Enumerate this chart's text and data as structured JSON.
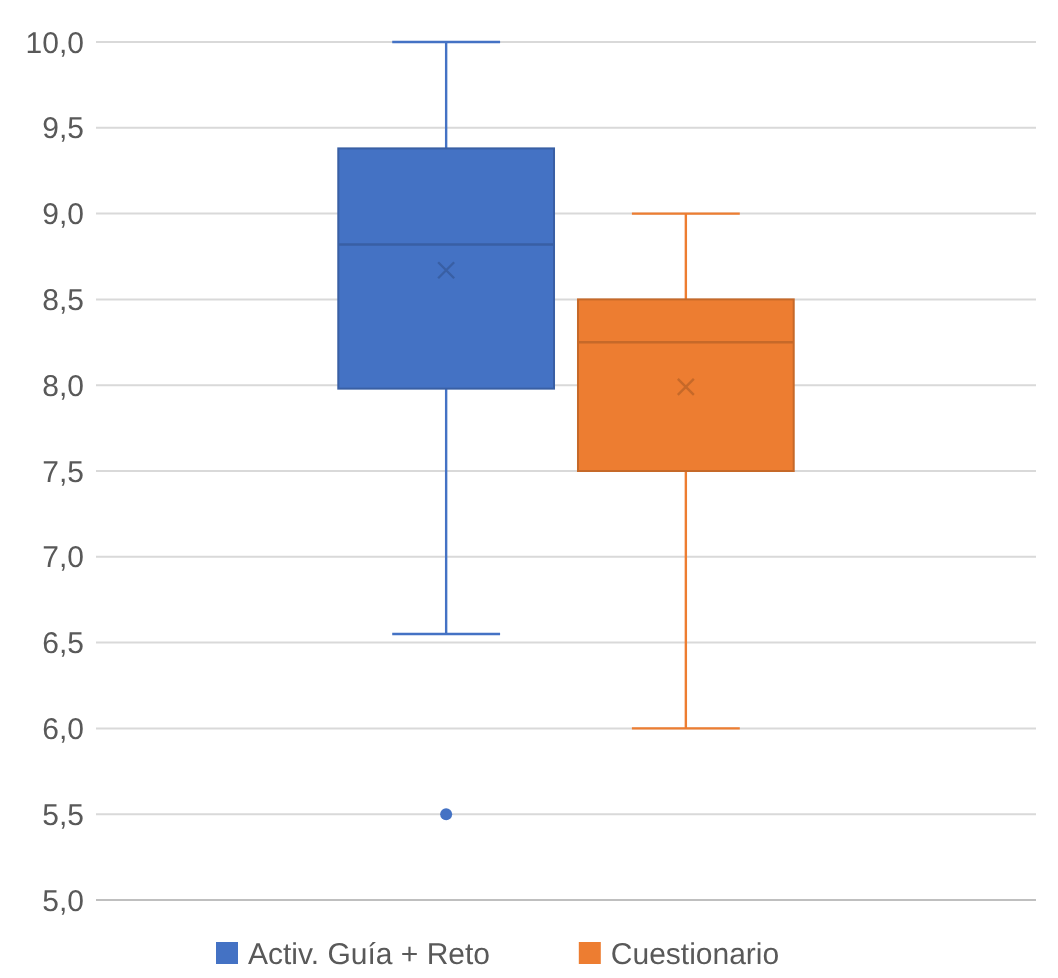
{
  "chart_data": {
    "type": "box",
    "categories": [
      null
    ],
    "series": [
      {
        "name": "Activ. Guía + Reto",
        "color": "#4472c4",
        "boxes": [
          {
            "low": 6.55,
            "q1": 7.98,
            "median": 8.82,
            "q3": 9.38,
            "high": 10,
            "mean": 8.67,
            "outliers": [
              5.5
            ]
          }
        ]
      },
      {
        "name": "Cuestionario",
        "color": "#ed7d31",
        "boxes": [
          {
            "low": 6,
            "q1": 7.5,
            "median": 8.25,
            "q3": 8.5,
            "high": 9,
            "mean": 7.99
          }
        ]
      }
    ],
    "ylim": [
      5,
      10
    ],
    "yticks": [
      {
        "value": 5,
        "label": "5,0"
      },
      {
        "value": 5.5,
        "label": "5,5"
      },
      {
        "value": 6,
        "label": "6,0"
      },
      {
        "value": 6.5,
        "label": "6,5"
      },
      {
        "value": 7,
        "label": "7,0"
      },
      {
        "value": 7.5,
        "label": "7,5"
      },
      {
        "value": 8,
        "label": "8,0"
      },
      {
        "value": 8.5,
        "label": "8,5"
      },
      {
        "value": 9,
        "label": "9,0"
      },
      {
        "value": 9.5,
        "label": "9,5"
      },
      {
        "value": 10,
        "label": "10,0"
      }
    ],
    "grid": "y",
    "legend": "bottom"
  }
}
